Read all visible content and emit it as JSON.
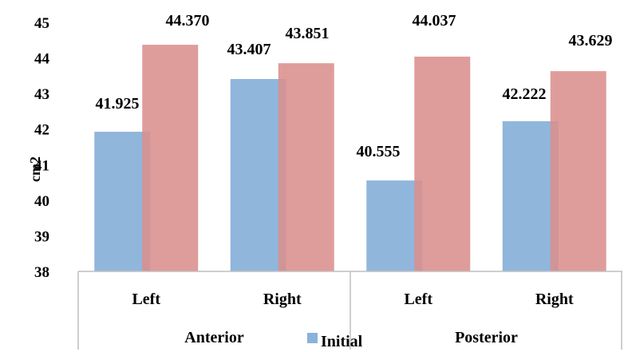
{
  "chart_data": {
    "type": "bar",
    "categories": [
      "Left",
      "Right",
      "Left",
      "Right"
    ],
    "groups": [
      {
        "label": "Anterior",
        "categories": [
          "Left",
          "Right"
        ]
      },
      {
        "label": "Posterior",
        "categories": [
          "Left",
          "Right"
        ]
      }
    ],
    "series": [
      {
        "name": "Initial",
        "values": [
          41.925,
          43.407,
          40.555,
          42.222
        ],
        "color": "#8AB2DA"
      },
      {
        "values": [
          44.37,
          43.851,
          44.037,
          43.629
        ],
        "color": "#D98F8D"
      }
    ],
    "data_labels": [
      [
        "41.925",
        "43.407",
        "40.555",
        "42.222"
      ],
      [
        "44.370",
        "43.851",
        "44.037",
        "43.629"
      ]
    ],
    "ylabel": "cm2",
    "ylim": [
      38,
      45
    ],
    "yticks": [
      "38",
      "39",
      "40",
      "41",
      "42",
      "43",
      "44",
      "45"
    ],
    "grid": false,
    "legend_position": "bottom"
  }
}
